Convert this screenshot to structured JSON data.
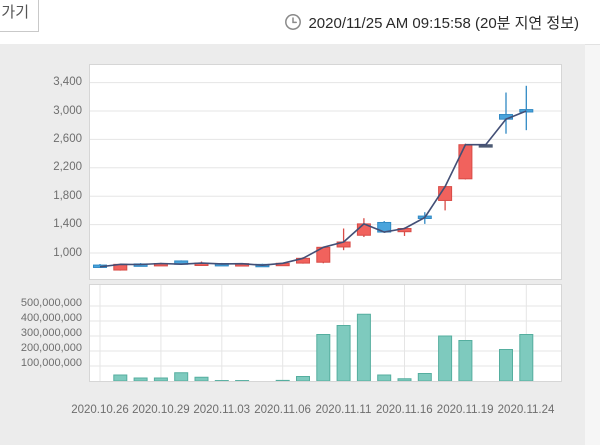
{
  "header": {
    "back_button_label": "가기",
    "timestamp": "2020/11/25 AM 09:15:58 (20분 지연 정보)"
  },
  "chart_data": {
    "type": "candlestick+volume",
    "title": "",
    "price_axis": {
      "labels": [
        "3,400",
        "3,000",
        "2,600",
        "2,200",
        "1,800",
        "1,400",
        "1,000"
      ],
      "values": [
        3400,
        3000,
        2600,
        2200,
        1800,
        1400,
        1000
      ]
    },
    "volume_axis": {
      "labels": [
        "500,000,000",
        "400,000,000",
        "300,000,000",
        "200,000,000",
        "100,000,000"
      ],
      "values": [
        500000000,
        400000000,
        300000000,
        200000000,
        100000000
      ]
    },
    "x_tick_indices": [
      0,
      3,
      6,
      9,
      12,
      15,
      18,
      21
    ],
    "x_tick_labels": [
      "2020.10.26",
      "2020.10.29",
      "2020.11.03",
      "2020.11.06",
      "2020.11.11",
      "2020.11.16",
      "2020.11.19",
      "2020.11.24"
    ],
    "candles": [
      {
        "date": "2020.10.26",
        "open": 830,
        "high": 845,
        "low": 795,
        "close": 805,
        "dir": "down",
        "volume": 2000000
      },
      {
        "date": "2020.10.27",
        "open": 760,
        "high": 850,
        "low": 752,
        "close": 840,
        "dir": "up",
        "volume": 40000000
      },
      {
        "date": "2020.10.28",
        "open": 846,
        "high": 858,
        "low": 828,
        "close": 838,
        "dir": "down",
        "volume": 20000000
      },
      {
        "date": "2020.10.29",
        "open": 840,
        "high": 862,
        "low": 832,
        "close": 852,
        "dir": "up",
        "volume": 20000000
      },
      {
        "date": "2020.10.30",
        "open": 888,
        "high": 896,
        "low": 832,
        "close": 842,
        "dir": "down",
        "volume": 55000000
      },
      {
        "date": "2020.11.02",
        "open": 846,
        "high": 880,
        "low": 836,
        "close": 858,
        "dir": "up",
        "volume": 25000000
      },
      {
        "date": "2020.11.03",
        "open": 852,
        "high": 860,
        "low": 840,
        "close": 846,
        "dir": "down",
        "volume": 3000000
      },
      {
        "date": "2020.11.04",
        "open": 842,
        "high": 856,
        "low": 834,
        "close": 850,
        "dir": "up",
        "volume": 3000000
      },
      {
        "date": "2020.11.05",
        "open": 840,
        "high": 848,
        "low": 822,
        "close": 828,
        "dir": "down",
        "volume": 2000000
      },
      {
        "date": "2020.11.06",
        "open": 832,
        "high": 862,
        "low": 826,
        "close": 855,
        "dir": "up",
        "volume": 4000000
      },
      {
        "date": "2020.11.09",
        "open": 858,
        "high": 940,
        "low": 850,
        "close": 925,
        "dir": "up",
        "volume": 30000000
      },
      {
        "date": "2020.11.10",
        "open": 870,
        "high": 1090,
        "low": 855,
        "close": 1080,
        "dir": "up",
        "volume": 310000000
      },
      {
        "date": "2020.11.11",
        "open": 1085,
        "high": 1345,
        "low": 1040,
        "close": 1155,
        "dir": "up",
        "volume": 370000000
      },
      {
        "date": "2020.11.12",
        "open": 1250,
        "high": 1490,
        "low": 1225,
        "close": 1410,
        "dir": "up",
        "volume": 445000000
      },
      {
        "date": "2020.11.13",
        "open": 1430,
        "high": 1450,
        "low": 1285,
        "close": 1295,
        "dir": "down",
        "volume": 40000000
      },
      {
        "date": "2020.11.16",
        "open": 1300,
        "high": 1360,
        "low": 1240,
        "close": 1345,
        "dir": "up",
        "volume": 15000000
      },
      {
        "date": "2020.11.17",
        "open": 1520,
        "high": 1575,
        "low": 1410,
        "close": 1500,
        "dir": "down",
        "volume": 50000000
      },
      {
        "date": "2020.11.18",
        "open": 1740,
        "high": 1945,
        "low": 1600,
        "close": 1935,
        "dir": "up",
        "volume": 300000000
      },
      {
        "date": "2020.11.19",
        "open": 2045,
        "high": 2540,
        "low": 2035,
        "close": 2525,
        "dir": "up",
        "volume": 270000000
      },
      {
        "date": "2020.11.20",
        "open": 2525,
        "high": 2530,
        "low": 2520,
        "close": 2525,
        "dir": "flat",
        "volume": 2000000
      },
      {
        "date": "2020.11.23",
        "open": 2950,
        "high": 3260,
        "low": 2680,
        "close": 2885,
        "dir": "down",
        "volume": 210000000
      },
      {
        "date": "2020.11.24",
        "open": 3020,
        "high": 3355,
        "low": 2730,
        "close": 3000,
        "dir": "down",
        "volume": 310000000
      }
    ],
    "overlay_line": "close",
    "colors": {
      "up_fill": "#f1625d",
      "up_stroke": "#d84b46",
      "down_fill": "#4aa4dc",
      "down_stroke": "#3089c4",
      "flat": "#4d5a73",
      "line": "#434f76",
      "volume_fill": "#7ecabe",
      "volume_stroke": "#55ae9f",
      "grid": "#e5e5e5"
    }
  }
}
